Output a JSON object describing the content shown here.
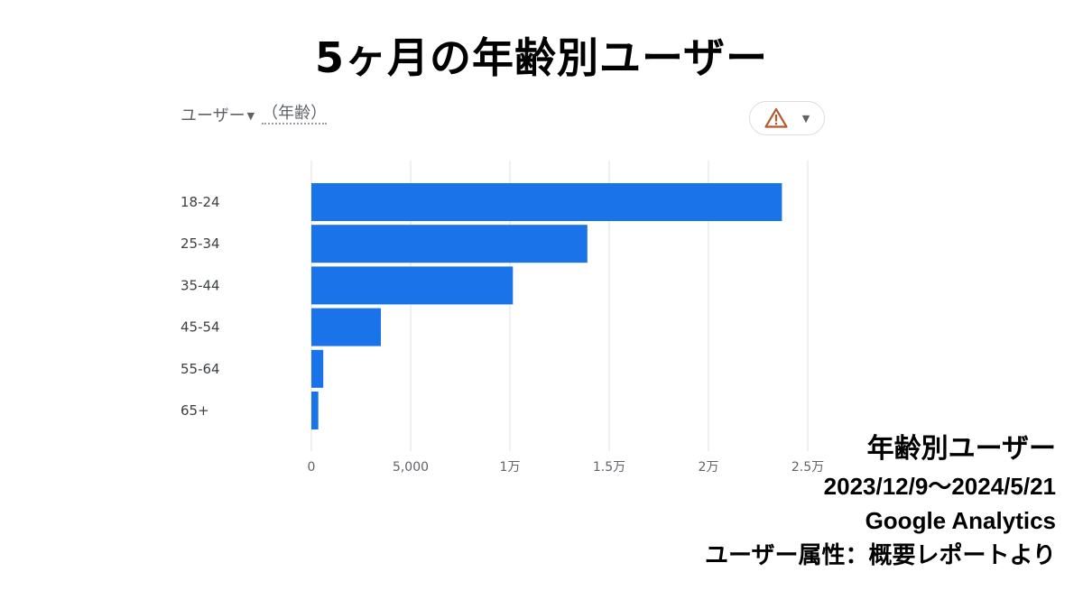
{
  "page": {
    "title": "5ヶ月の年齢別ユーザー"
  },
  "metric_selector": {
    "metric": "ユーザー",
    "dimension": "（年齢）",
    "caret_icon": "caret-down-icon"
  },
  "warning_chip": {
    "icon": "warning-triangle-icon",
    "dropdown_icon": "caret-down-icon",
    "color": "#b5582c"
  },
  "info": {
    "title": "年齢別ユーザー",
    "period": "2023/12/9～2024/5/21",
    "source": "Google Analytics",
    "report": "ユーザー属性：概要レポートより"
  },
  "colors": {
    "bar": "#1a73e8",
    "grid": "#e0e0e0",
    "tick_text": "#5f6368",
    "category_text": "#3c4043"
  },
  "chart_data": {
    "type": "bar",
    "orientation": "horizontal",
    "categories": [
      "18-24",
      "25-34",
      "35-44",
      "45-54",
      "55-64",
      "65+"
    ],
    "values": [
      23700,
      13900,
      10150,
      3500,
      600,
      350
    ],
    "xlim": [
      0,
      25000
    ],
    "xticks": [
      0,
      5000,
      10000,
      15000,
      20000,
      25000
    ],
    "xtick_labels": [
      "0",
      "5,000",
      "1万",
      "1.5万",
      "2万",
      "2.5万"
    ],
    "grid": true,
    "title": "",
    "xlabel": "",
    "ylabel": ""
  }
}
